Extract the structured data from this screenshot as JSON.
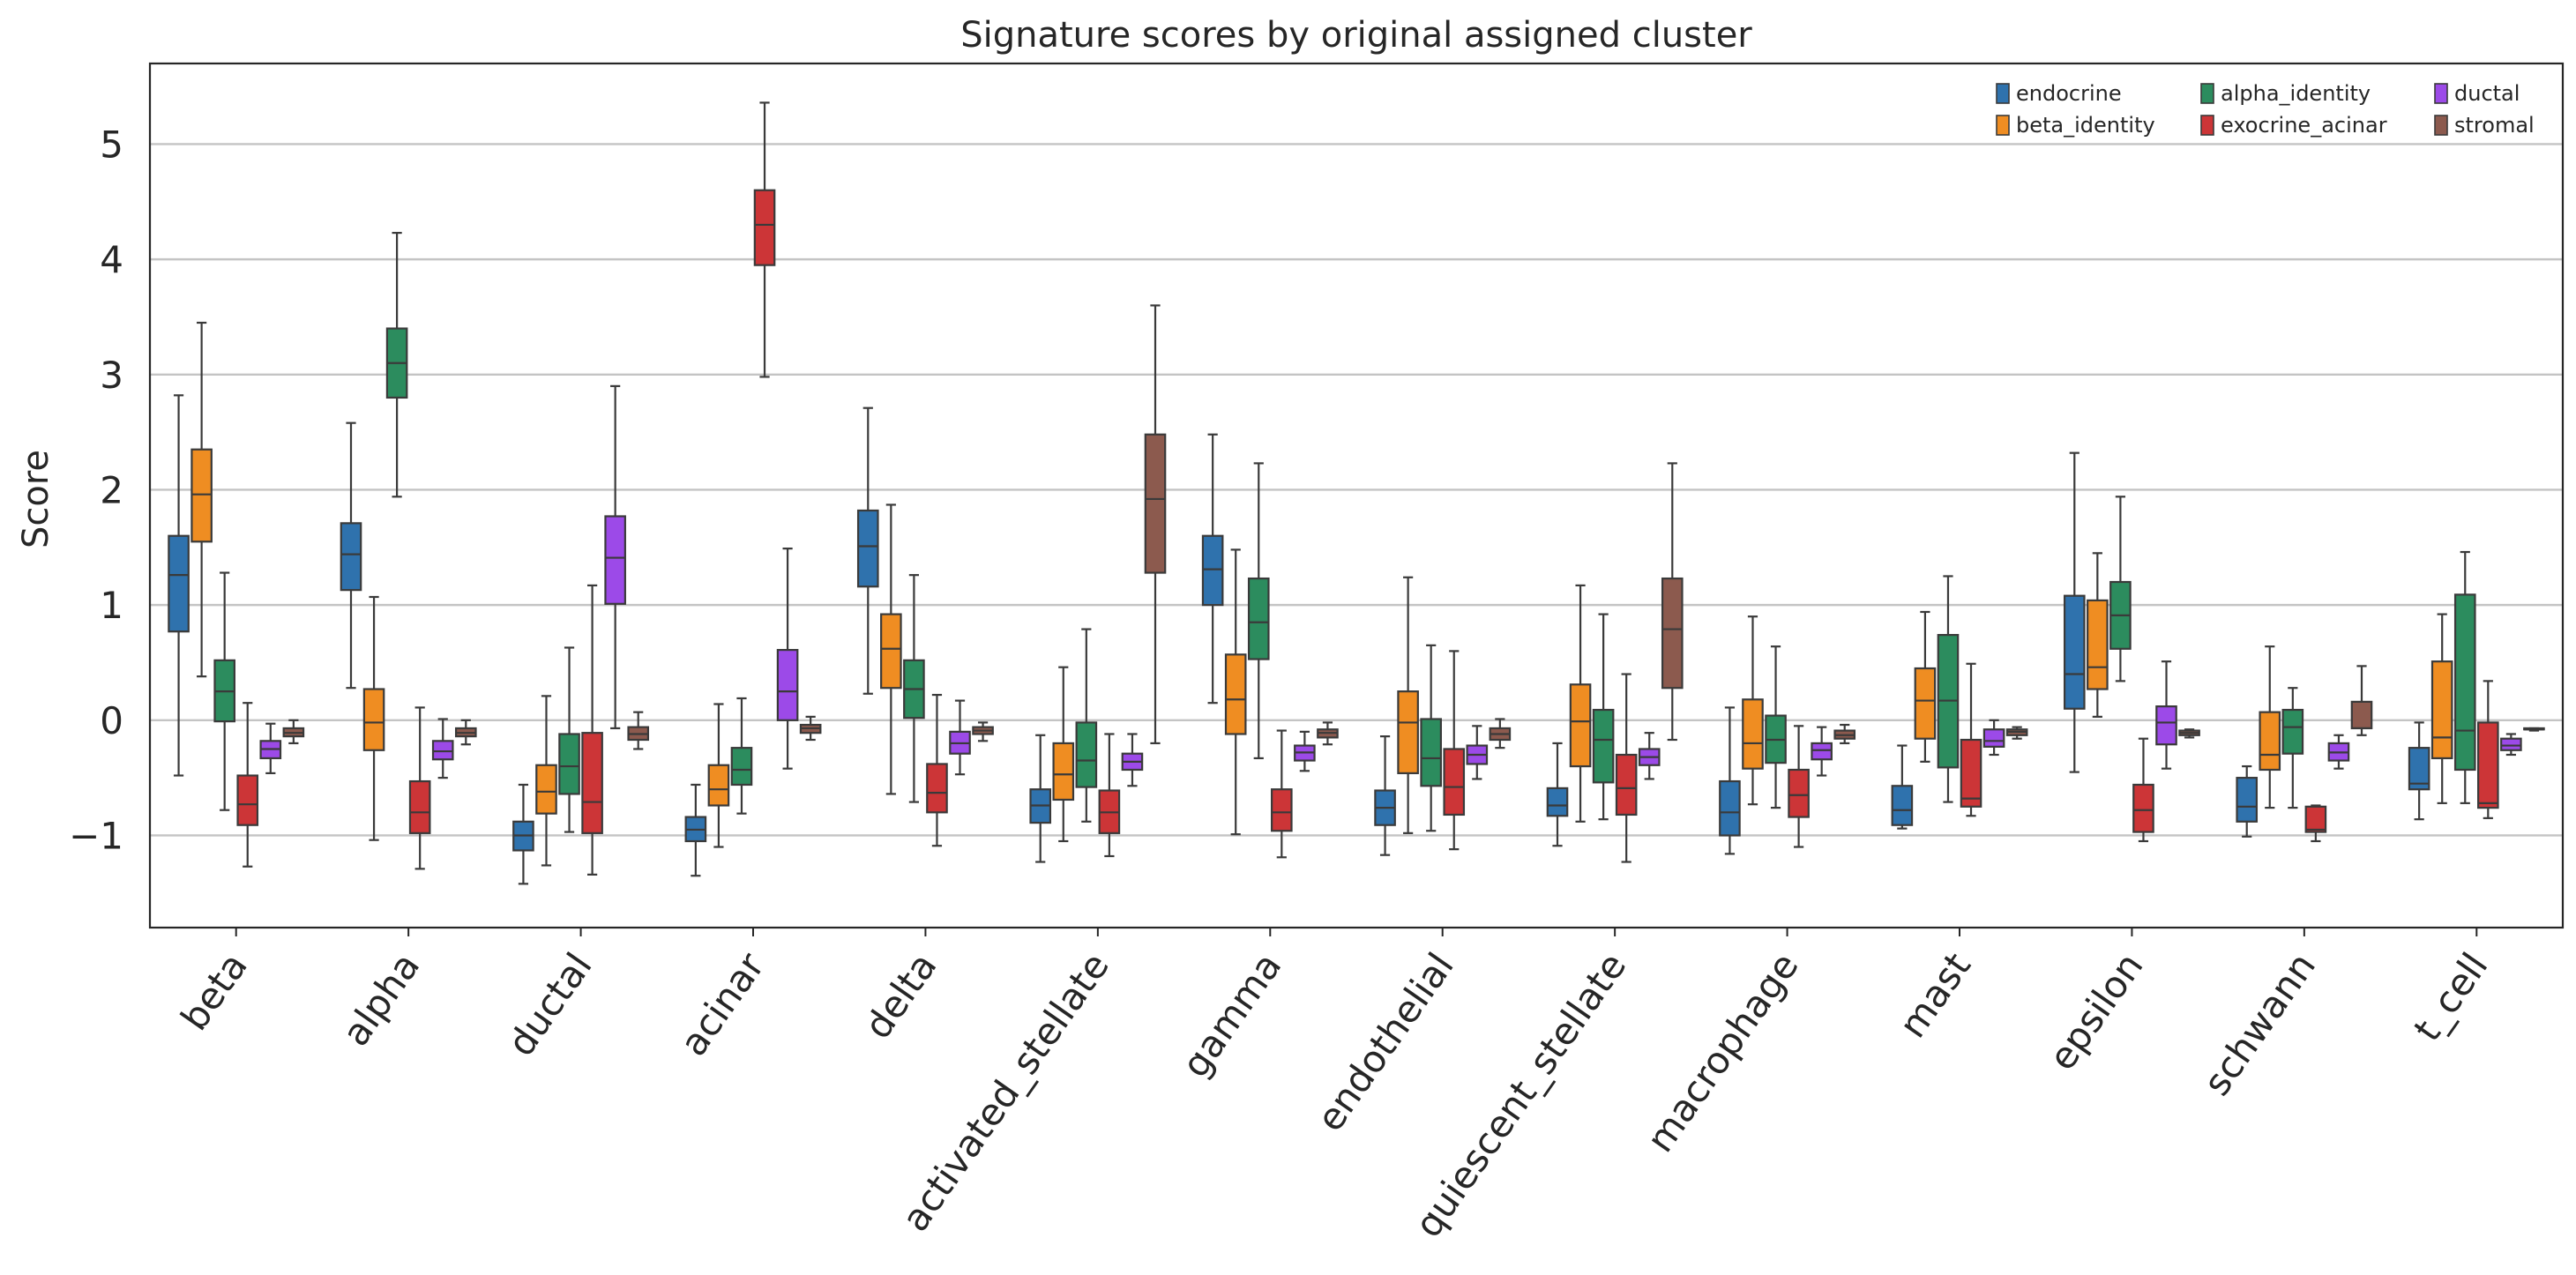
{
  "chart_data": {
    "type": "box",
    "title": "Signature scores by original assigned cluster",
    "xlabel": "",
    "ylabel": "Score",
    "ylim": [
      -1.8,
      5.7
    ],
    "yticks": [
      -1,
      0,
      1,
      2,
      3,
      4,
      5
    ],
    "grid": "horizontal",
    "legend_position": "top-right",
    "categories": [
      "beta",
      "alpha",
      "ductal",
      "acinar",
      "delta",
      "activated_stellate",
      "gamma",
      "endothelial",
      "quiescent_stellate",
      "macrophage",
      "mast",
      "epsilon",
      "schwann",
      "t_cell"
    ],
    "series": [
      {
        "name": "endocrine",
        "color": "#2f72ad",
        "boxes": [
          {
            "category": "beta",
            "min": -0.48,
            "q1": 0.77,
            "median": 1.26,
            "q3": 1.6,
            "max": 2.82
          },
          {
            "category": "alpha",
            "min": 0.28,
            "q1": 1.13,
            "median": 1.44,
            "q3": 1.71,
            "max": 2.58
          },
          {
            "category": "ductal",
            "min": -1.42,
            "q1": -1.13,
            "median": -1.0,
            "q3": -0.88,
            "max": -0.56
          },
          {
            "category": "acinar",
            "min": -1.35,
            "q1": -1.05,
            "median": -0.95,
            "q3": -0.84,
            "max": -0.56
          },
          {
            "category": "delta",
            "min": 0.23,
            "q1": 1.16,
            "median": 1.51,
            "q3": 1.82,
            "max": 2.71
          },
          {
            "category": "activated_stellate",
            "min": -1.23,
            "q1": -0.89,
            "median": -0.74,
            "q3": -0.6,
            "max": -0.13
          },
          {
            "category": "gamma",
            "min": 0.15,
            "q1": 1.0,
            "median": 1.31,
            "q3": 1.6,
            "max": 2.48
          },
          {
            "category": "endothelial",
            "min": -1.17,
            "q1": -0.91,
            "median": -0.76,
            "q3": -0.61,
            "max": -0.14
          },
          {
            "category": "quiescent_stellate",
            "min": -1.09,
            "q1": -0.83,
            "median": -0.74,
            "q3": -0.59,
            "max": -0.2
          },
          {
            "category": "macrophage",
            "min": -1.16,
            "q1": -1.0,
            "median": -0.8,
            "q3": -0.53,
            "max": 0.11
          },
          {
            "category": "mast",
            "min": -0.94,
            "q1": -0.91,
            "median": -0.78,
            "q3": -0.57,
            "max": -0.22
          },
          {
            "category": "epsilon",
            "min": -0.45,
            "q1": 0.1,
            "median": 0.4,
            "q3": 1.08,
            "max": 2.32
          },
          {
            "category": "schwann",
            "min": -1.01,
            "q1": -0.88,
            "median": -0.75,
            "q3": -0.5,
            "max": -0.4
          },
          {
            "category": "t_cell",
            "min": -0.86,
            "q1": -0.6,
            "median": -0.55,
            "q3": -0.24,
            "max": -0.02
          }
        ]
      },
      {
        "name": "beta_identity",
        "color": "#ef8d22",
        "boxes": [
          {
            "category": "beta",
            "min": 0.38,
            "q1": 1.55,
            "median": 1.96,
            "q3": 2.35,
            "max": 3.45
          },
          {
            "category": "alpha",
            "min": -1.04,
            "q1": -0.26,
            "median": -0.02,
            "q3": 0.27,
            "max": 1.07
          },
          {
            "category": "ductal",
            "min": -1.26,
            "q1": -0.81,
            "median": -0.62,
            "q3": -0.39,
            "max": 0.21
          },
          {
            "category": "acinar",
            "min": -1.1,
            "q1": -0.74,
            "median": -0.6,
            "q3": -0.39,
            "max": 0.14
          },
          {
            "category": "delta",
            "min": -0.64,
            "q1": 0.28,
            "median": 0.62,
            "q3": 0.92,
            "max": 1.87
          },
          {
            "category": "activated_stellate",
            "min": -1.05,
            "q1": -0.69,
            "median": -0.47,
            "q3": -0.2,
            "max": 0.46
          },
          {
            "category": "gamma",
            "min": -0.99,
            "q1": -0.12,
            "median": 0.18,
            "q3": 0.57,
            "max": 1.48
          },
          {
            "category": "endothelial",
            "min": -0.98,
            "q1": -0.46,
            "median": -0.02,
            "q3": 0.25,
            "max": 1.24
          },
          {
            "category": "quiescent_stellate",
            "min": -0.88,
            "q1": -0.4,
            "median": -0.01,
            "q3": 0.31,
            "max": 1.17
          },
          {
            "category": "macrophage",
            "min": -0.73,
            "q1": -0.42,
            "median": -0.2,
            "q3": 0.18,
            "max": 0.9
          },
          {
            "category": "mast",
            "min": -0.36,
            "q1": -0.16,
            "median": 0.17,
            "q3": 0.45,
            "max": 0.94
          },
          {
            "category": "epsilon",
            "min": 0.03,
            "q1": 0.27,
            "median": 0.46,
            "q3": 1.04,
            "max": 1.45
          },
          {
            "category": "schwann",
            "min": -0.76,
            "q1": -0.43,
            "median": -0.3,
            "q3": 0.07,
            "max": 0.64
          },
          {
            "category": "t_cell",
            "min": -0.72,
            "q1": -0.33,
            "median": -0.15,
            "q3": 0.51,
            "max": 0.92
          }
        ]
      },
      {
        "name": "alpha_identity",
        "color": "#2c8c5e",
        "boxes": [
          {
            "category": "beta",
            "min": -0.78,
            "q1": -0.01,
            "median": 0.25,
            "q3": 0.52,
            "max": 1.28
          },
          {
            "category": "alpha",
            "min": 1.94,
            "q1": 2.8,
            "median": 3.1,
            "q3": 3.4,
            "max": 4.23
          },
          {
            "category": "ductal",
            "min": -0.97,
            "q1": -0.64,
            "median": -0.4,
            "q3": -0.12,
            "max": 0.63
          },
          {
            "category": "acinar",
            "min": -0.81,
            "q1": -0.56,
            "median": -0.43,
            "q3": -0.24,
            "max": 0.19
          },
          {
            "category": "delta",
            "min": -0.71,
            "q1": 0.02,
            "median": 0.27,
            "q3": 0.52,
            "max": 1.26
          },
          {
            "category": "activated_stellate",
            "min": -0.88,
            "q1": -0.58,
            "median": -0.35,
            "q3": -0.02,
            "max": 0.79
          },
          {
            "category": "gamma",
            "min": -0.33,
            "q1": 0.53,
            "median": 0.85,
            "q3": 1.23,
            "max": 2.23
          },
          {
            "category": "endothelial",
            "min": -0.96,
            "q1": -0.57,
            "median": -0.33,
            "q3": 0.01,
            "max": 0.65
          },
          {
            "category": "quiescent_stellate",
            "min": -0.86,
            "q1": -0.54,
            "median": -0.17,
            "q3": 0.09,
            "max": 0.92
          },
          {
            "category": "macrophage",
            "min": -0.76,
            "q1": -0.37,
            "median": -0.17,
            "q3": 0.04,
            "max": 0.64
          },
          {
            "category": "mast",
            "min": -0.71,
            "q1": -0.41,
            "median": 0.17,
            "q3": 0.74,
            "max": 1.25
          },
          {
            "category": "epsilon",
            "min": 0.34,
            "q1": 0.62,
            "median": 0.91,
            "q3": 1.2,
            "max": 1.94
          },
          {
            "category": "schwann",
            "min": -0.76,
            "q1": -0.29,
            "median": -0.06,
            "q3": 0.09,
            "max": 0.28
          },
          {
            "category": "t_cell",
            "min": -0.72,
            "q1": -0.43,
            "median": -0.09,
            "q3": 1.09,
            "max": 1.46
          }
        ]
      },
      {
        "name": "exocrine_acinar",
        "color": "#cc3537",
        "boxes": [
          {
            "category": "beta",
            "min": -1.27,
            "q1": -0.91,
            "median": -0.73,
            "q3": -0.48,
            "max": 0.15
          },
          {
            "category": "alpha",
            "min": -1.29,
            "q1": -0.98,
            "median": -0.8,
            "q3": -0.53,
            "max": 0.11
          },
          {
            "category": "ductal",
            "min": -1.34,
            "q1": -0.98,
            "median": -0.71,
            "q3": -0.11,
            "max": 1.17
          },
          {
            "category": "acinar",
            "min": 2.98,
            "q1": 3.95,
            "median": 4.3,
            "q3": 4.6,
            "max": 5.36
          },
          {
            "category": "delta",
            "min": -1.09,
            "q1": -0.8,
            "median": -0.63,
            "q3": -0.38,
            "max": 0.22
          },
          {
            "category": "activated_stellate",
            "min": -1.18,
            "q1": -0.98,
            "median": -0.8,
            "q3": -0.61,
            "max": -0.12
          },
          {
            "category": "gamma",
            "min": -1.19,
            "q1": -0.96,
            "median": -0.8,
            "q3": -0.6,
            "max": -0.09
          },
          {
            "category": "endothelial",
            "min": -1.12,
            "q1": -0.82,
            "median": -0.58,
            "q3": -0.25,
            "max": 0.6
          },
          {
            "category": "quiescent_stellate",
            "min": -1.23,
            "q1": -0.82,
            "median": -0.59,
            "q3": -0.3,
            "max": 0.4
          },
          {
            "category": "macrophage",
            "min": -1.1,
            "q1": -0.84,
            "median": -0.65,
            "q3": -0.43,
            "max": -0.05
          },
          {
            "category": "mast",
            "min": -0.83,
            "q1": -0.75,
            "median": -0.68,
            "q3": -0.17,
            "max": 0.49
          },
          {
            "category": "epsilon",
            "min": -1.05,
            "q1": -0.97,
            "median": -0.78,
            "q3": -0.56,
            "max": -0.16
          },
          {
            "category": "schwann",
            "min": -1.05,
            "q1": -0.97,
            "median": -0.95,
            "q3": -0.75,
            "max": -0.74
          },
          {
            "category": "t_cell",
            "min": -0.85,
            "q1": -0.76,
            "median": -0.72,
            "q3": -0.02,
            "max": 0.34
          }
        ]
      },
      {
        "name": "ductal",
        "color": "#9c4ae8",
        "boxes": [
          {
            "category": "beta",
            "min": -0.46,
            "q1": -0.33,
            "median": -0.25,
            "q3": -0.18,
            "max": -0.03
          },
          {
            "category": "alpha",
            "min": -0.5,
            "q1": -0.34,
            "median": -0.27,
            "q3": -0.18,
            "max": 0.01
          },
          {
            "category": "ductal",
            "min": -0.07,
            "q1": 1.01,
            "median": 1.41,
            "q3": 1.77,
            "max": 2.9
          },
          {
            "category": "acinar",
            "min": -0.42,
            "q1": 0.0,
            "median": 0.25,
            "q3": 0.61,
            "max": 1.49
          },
          {
            "category": "delta",
            "min": -0.47,
            "q1": -0.29,
            "median": -0.2,
            "q3": -0.1,
            "max": 0.17
          },
          {
            "category": "activated_stellate",
            "min": -0.57,
            "q1": -0.43,
            "median": -0.36,
            "q3": -0.29,
            "max": -0.12
          },
          {
            "category": "gamma",
            "min": -0.44,
            "q1": -0.35,
            "median": -0.28,
            "q3": -0.22,
            "max": -0.1
          },
          {
            "category": "endothelial",
            "min": -0.51,
            "q1": -0.38,
            "median": -0.3,
            "q3": -0.22,
            "max": -0.05
          },
          {
            "category": "quiescent_stellate",
            "min": -0.51,
            "q1": -0.39,
            "median": -0.32,
            "q3": -0.25,
            "max": -0.11
          },
          {
            "category": "macrophage",
            "min": -0.48,
            "q1": -0.34,
            "median": -0.26,
            "q3": -0.2,
            "max": -0.06
          },
          {
            "category": "mast",
            "min": -0.3,
            "q1": -0.23,
            "median": -0.18,
            "q3": -0.08,
            "max": 0.0
          },
          {
            "category": "epsilon",
            "min": -0.42,
            "q1": -0.21,
            "median": -0.02,
            "q3": 0.12,
            "max": 0.51
          },
          {
            "category": "schwann",
            "min": -0.42,
            "q1": -0.35,
            "median": -0.28,
            "q3": -0.2,
            "max": -0.13
          },
          {
            "category": "t_cell",
            "min": -0.3,
            "q1": -0.26,
            "median": -0.22,
            "q3": -0.16,
            "max": -0.12
          }
        ]
      },
      {
        "name": "stromal",
        "color": "#8c5a4e",
        "boxes": [
          {
            "category": "beta",
            "min": -0.2,
            "q1": -0.14,
            "median": -0.11,
            "q3": -0.07,
            "max": 0.0
          },
          {
            "category": "alpha",
            "min": -0.21,
            "q1": -0.14,
            "median": -0.11,
            "q3": -0.07,
            "max": 0.0
          },
          {
            "category": "ductal",
            "min": -0.25,
            "q1": -0.17,
            "median": -0.12,
            "q3": -0.06,
            "max": 0.07
          },
          {
            "category": "acinar",
            "min": -0.17,
            "q1": -0.11,
            "median": -0.07,
            "q3": -0.04,
            "max": 0.03
          },
          {
            "category": "delta",
            "min": -0.18,
            "q1": -0.12,
            "median": -0.09,
            "q3": -0.06,
            "max": -0.02
          },
          {
            "category": "activated_stellate",
            "min": -0.2,
            "q1": 1.28,
            "median": 1.92,
            "q3": 2.48,
            "max": 3.6
          },
          {
            "category": "gamma",
            "min": -0.21,
            "q1": -0.15,
            "median": -0.11,
            "q3": -0.08,
            "max": -0.02
          },
          {
            "category": "endothelial",
            "min": -0.24,
            "q1": -0.17,
            "median": -0.12,
            "q3": -0.07,
            "max": 0.01
          },
          {
            "category": "quiescent_stellate",
            "min": -0.17,
            "q1": 0.28,
            "median": 0.79,
            "q3": 1.23,
            "max": 2.23
          },
          {
            "category": "macrophage",
            "min": -0.2,
            "q1": -0.16,
            "median": -0.13,
            "q3": -0.09,
            "max": -0.04
          },
          {
            "category": "mast",
            "min": -0.16,
            "q1": -0.13,
            "median": -0.1,
            "q3": -0.08,
            "max": -0.06
          },
          {
            "category": "epsilon",
            "min": -0.15,
            "q1": -0.13,
            "median": -0.11,
            "q3": -0.09,
            "max": -0.08
          },
          {
            "category": "schwann",
            "min": -0.13,
            "q1": -0.07,
            "median": -0.07,
            "q3": 0.16,
            "max": 0.47
          },
          {
            "category": "t_cell",
            "min": -0.09,
            "q1": -0.08,
            "median": -0.08,
            "q3": -0.07,
            "max": -0.07
          }
        ]
      }
    ]
  }
}
